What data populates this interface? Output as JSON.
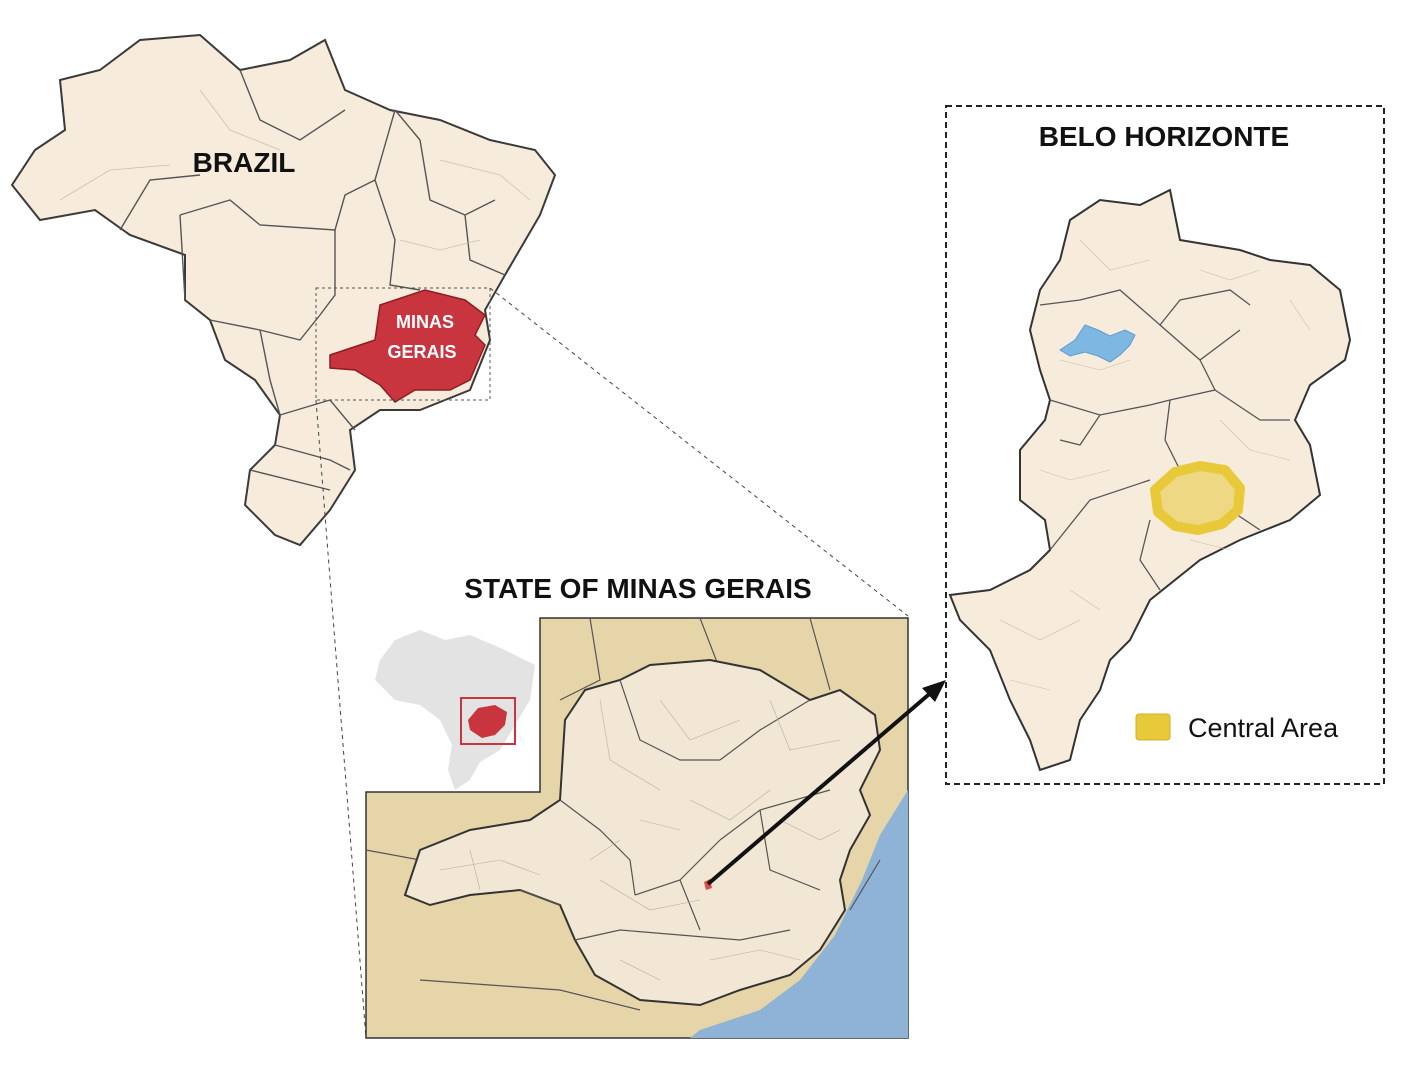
{
  "titles": {
    "country": "BRAZIL",
    "state": "STATE OF MINAS GERAIS",
    "city": "BELO HORIZONTE"
  },
  "highlight": {
    "line1": "MINAS",
    "line2": "GERAIS"
  },
  "legend": {
    "label": "Central Area",
    "swatch_color": "#e8c93a"
  },
  "colors": {
    "land": "#f7ecdc",
    "border": "#3a3a3a",
    "state_highlight": "#c8353f",
    "neighbor_land": "#e6d5a8",
    "ocean": "#8fb3d6",
    "lake": "#7fb7e3",
    "inset_gray": "#e3e3e3"
  },
  "icons": {
    "arrow": "arrow-icon"
  }
}
